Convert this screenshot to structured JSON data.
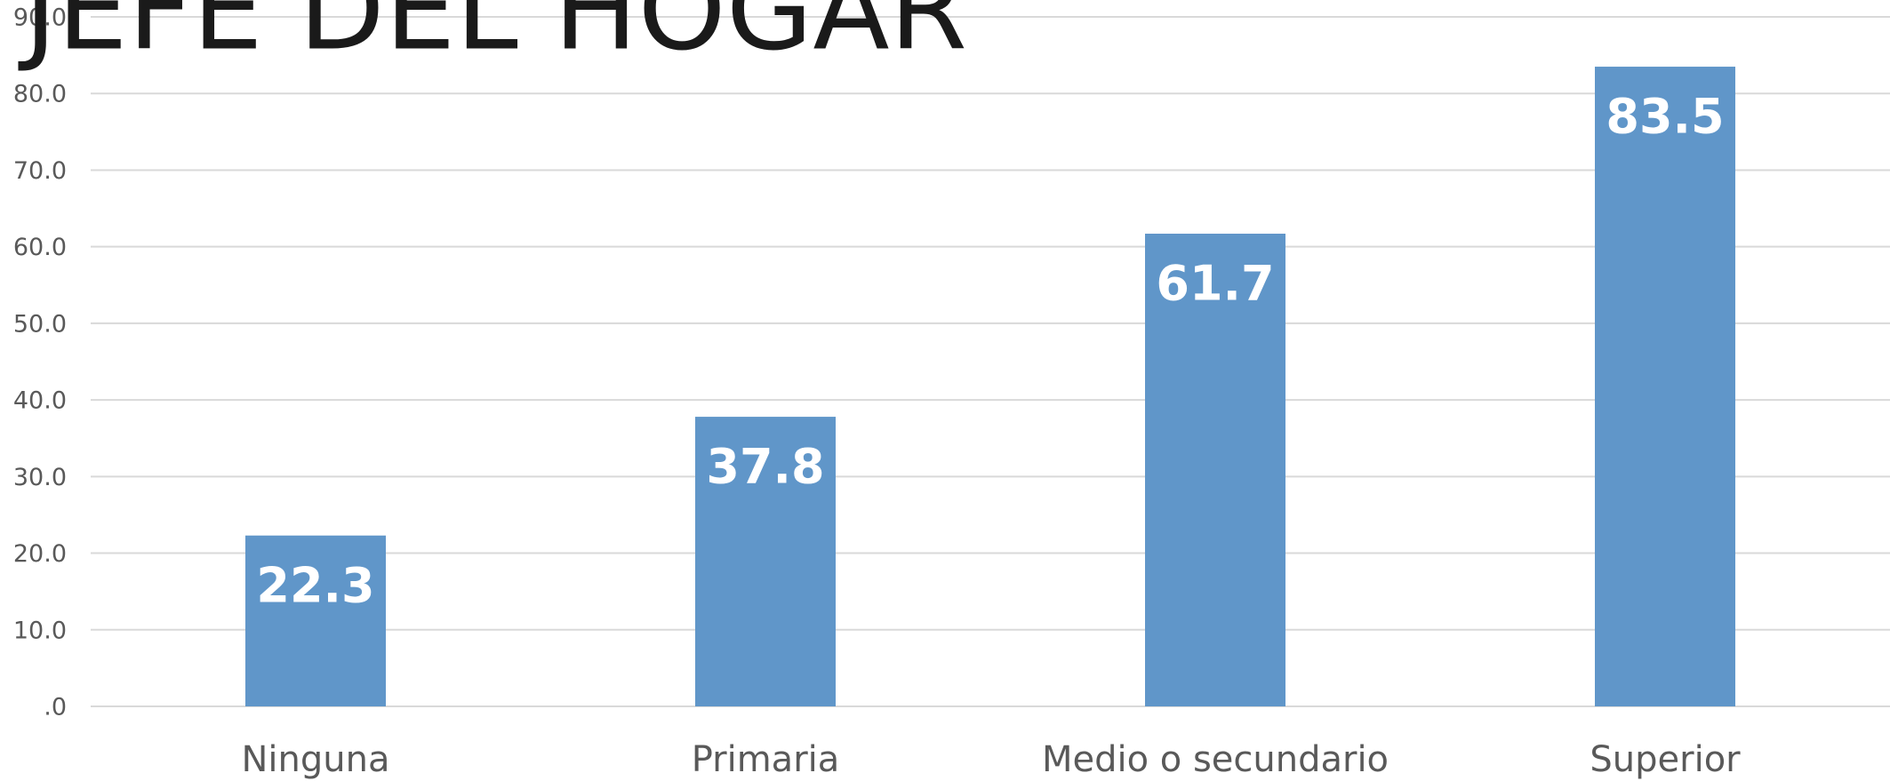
{
  "chart_data": {
    "type": "bar",
    "title": "JEFE DEL HOGAR",
    "categories": [
      "Ninguna",
      "Primaria",
      "Medio o secundario",
      "Superior"
    ],
    "values": [
      22.3,
      37.8,
      61.7,
      83.5
    ],
    "color": "#6096c9",
    "ylim": [
      0,
      90
    ],
    "yticks": [
      {
        "value": 0,
        "label": ".0"
      },
      {
        "value": 10,
        "label": "10.0"
      },
      {
        "value": 20,
        "label": "20.0"
      },
      {
        "value": 30,
        "label": "30.0"
      },
      {
        "value": 40,
        "label": "40.0"
      },
      {
        "value": 50,
        "label": "50.0"
      },
      {
        "value": 60,
        "label": "60.0"
      },
      {
        "value": 70,
        "label": "70.0"
      },
      {
        "value": 80,
        "label": "80.0"
      },
      {
        "value": 90,
        "label": "90.0"
      }
    ],
    "grid": true
  }
}
